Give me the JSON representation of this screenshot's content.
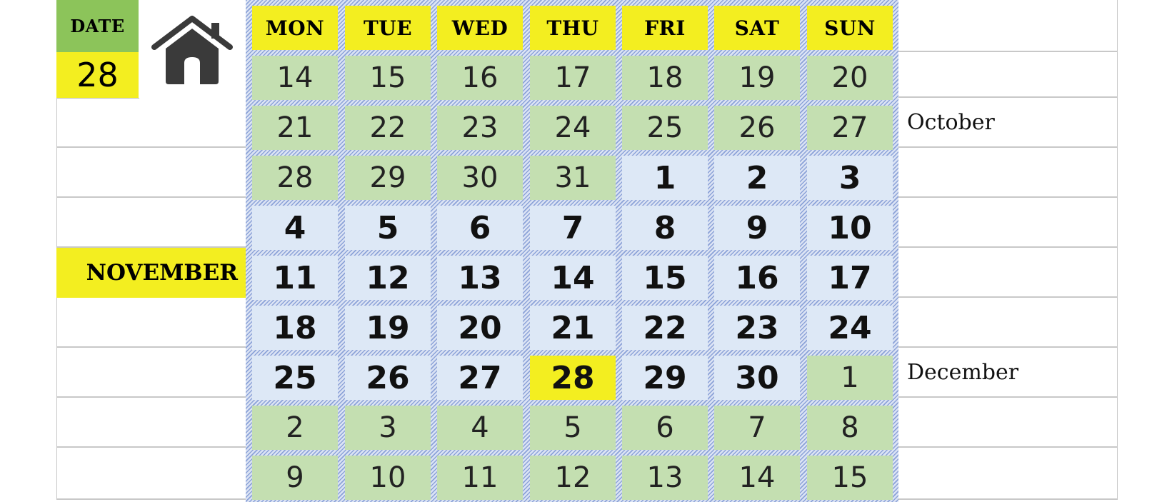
{
  "left_panel": {
    "date_label": "DATE",
    "date_value": "28",
    "home_icon": "home-icon",
    "month_label": "NOVEMBER"
  },
  "calendar": {
    "weekdays": [
      "MON",
      "TUE",
      "WED",
      "THU",
      "FRI",
      "SAT",
      "SUN"
    ],
    "weeks": [
      [
        "14",
        "15",
        "16",
        "17",
        "18",
        "19",
        "20"
      ],
      [
        "21",
        "22",
        "23",
        "24",
        "25",
        "26",
        "27"
      ],
      [
        "28",
        "29",
        "30",
        "31",
        "1",
        "2",
        "3"
      ],
      [
        "4",
        "5",
        "6",
        "7",
        "8",
        "9",
        "10"
      ],
      [
        "11",
        "12",
        "13",
        "14",
        "15",
        "16",
        "17"
      ],
      [
        "18",
        "19",
        "20",
        "21",
        "22",
        "23",
        "24"
      ],
      [
        "25",
        "26",
        "27",
        "28",
        "29",
        "30",
        "1"
      ],
      [
        "2",
        "3",
        "4",
        "5",
        "6",
        "7",
        "8"
      ],
      [
        "9",
        "10",
        "11",
        "12",
        "13",
        "14",
        "15"
      ]
    ],
    "today": "28"
  },
  "right_panel": {
    "month_labels": [
      "",
      "",
      "October",
      "",
      "",
      "",
      "",
      "December",
      "",
      ""
    ]
  },
  "colors": {
    "header_yellow": "#f3ee20",
    "date_green": "#8cc45a",
    "other_month_green": "#c4dfb1",
    "current_month_blue": "#dde8f6",
    "hatch_blue": "#8ca3d8"
  }
}
